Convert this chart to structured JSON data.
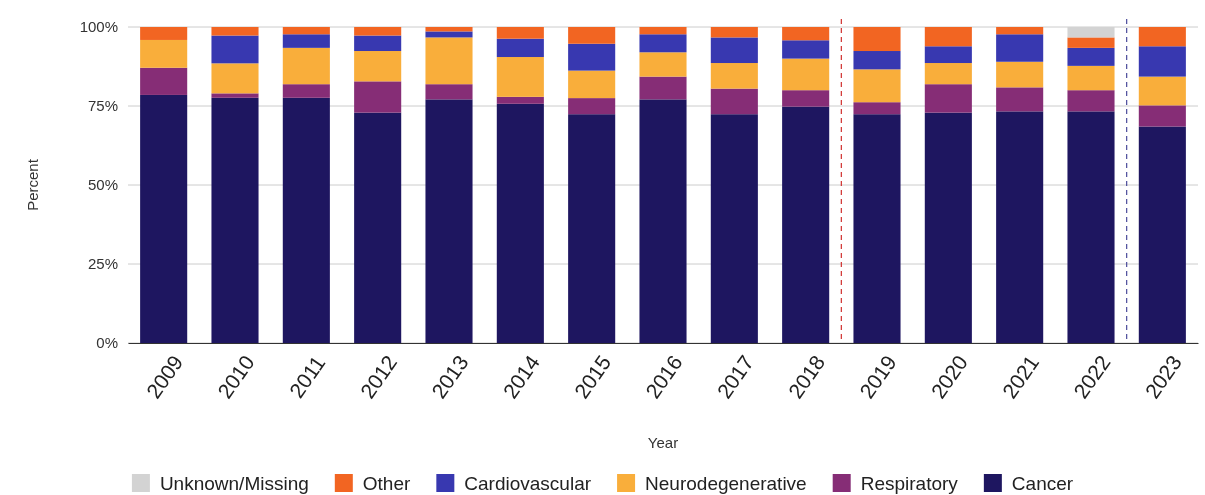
{
  "chart_data": {
    "type": "bar",
    "stacked": true,
    "xlabel": "Year",
    "ylabel": "Percent",
    "x": [
      2009,
      2010,
      2011,
      2012,
      2013,
      2014,
      2015,
      2016,
      2017,
      2018,
      2019,
      2020,
      2021,
      2022,
      2023
    ],
    "xlim": [
      2008.5,
      2023.5
    ],
    "xticks": [
      2009,
      2010,
      2011,
      2012,
      2013,
      2014,
      2015,
      2016,
      2017,
      2018,
      2019,
      2020,
      2021,
      2022,
      2023
    ],
    "ylim": [
      0,
      100
    ],
    "yticks": [
      {
        "value": 0,
        "label": "0%"
      },
      {
        "value": 25,
        "label": "25%"
      },
      {
        "value": 50,
        "label": "50%"
      },
      {
        "value": 75,
        "label": "75%"
      },
      {
        "value": 100,
        "label": "100%"
      }
    ],
    "grid": "y",
    "legend": "bottom",
    "series": [
      {
        "name": "Cancer",
        "color": "#1e1660",
        "values": [
          78.5,
          77.6,
          77.6,
          72.9,
          77.1,
          75.7,
          72.4,
          77.1,
          72.4,
          74.8,
          72.4,
          72.9,
          73.3,
          73.3,
          68.5
        ]
      },
      {
        "name": "Respiratory",
        "color": "#862d76",
        "values": [
          8.6,
          1.4,
          4.3,
          9.9,
          4.8,
          2.2,
          5.1,
          7.2,
          8.1,
          5.2,
          3.8,
          9.0,
          7.6,
          6.7,
          6.7
        ]
      },
      {
        "name": "Neurodegenerative",
        "color": "#f9ae3b",
        "values": [
          8.8,
          9.5,
          11.5,
          9.6,
          14.8,
          12.6,
          8.7,
          7.7,
          8.1,
          10.0,
          10.4,
          6.7,
          8.1,
          7.7,
          9.1
        ]
      },
      {
        "name": "Cardiovascular",
        "color": "#3838b0",
        "values": [
          0,
          8.8,
          4.3,
          4.9,
          1.9,
          5.8,
          8.5,
          5.7,
          8.1,
          5.8,
          5.8,
          5.3,
          8.7,
          5.7,
          9.6
        ]
      },
      {
        "name": "Other",
        "color": "#f26522",
        "values": [
          4.1,
          2.7,
          2.3,
          2.7,
          1.4,
          3.7,
          5.3,
          2.3,
          3.3,
          4.2,
          7.6,
          6.1,
          2.3,
          3.3,
          6.1
        ]
      },
      {
        "name": "Unknown/Missing",
        "color": "#d3d3d3",
        "values": [
          0,
          0,
          0,
          0,
          0,
          0,
          0,
          0,
          0,
          0,
          0,
          0,
          0,
          3.3,
          0
        ]
      }
    ],
    "ref_lines": [
      {
        "axis": "x",
        "value": 2018.5,
        "color": "#d0302f",
        "line_style": "dashed"
      },
      {
        "axis": "x",
        "value": 2022.5,
        "color": "#4a4a9a",
        "line_style": "dashed"
      }
    ]
  }
}
